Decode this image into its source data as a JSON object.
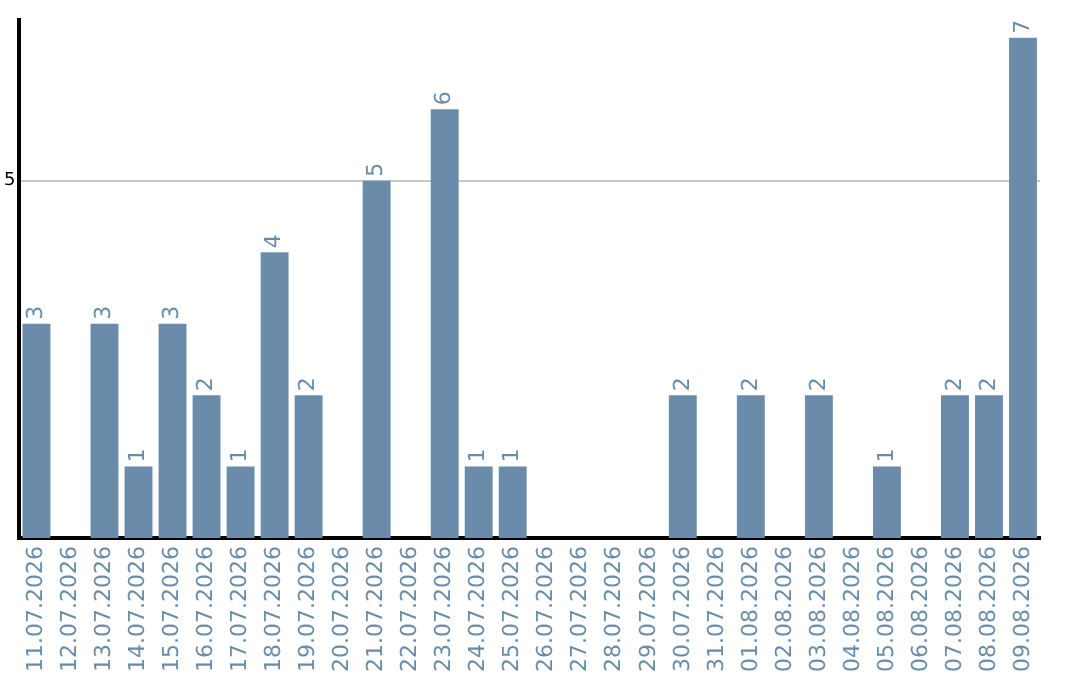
{
  "chart_data": {
    "type": "bar",
    "categories": [
      "11.07.2026",
      "12.07.2026",
      "13.07.2026",
      "14.07.2026",
      "15.07.2026",
      "16.07.2026",
      "17.07.2026",
      "18.07.2026",
      "19.07.2026",
      "20.07.2026",
      "21.07.2026",
      "22.07.2026",
      "23.07.2026",
      "24.07.2026",
      "25.07.2026",
      "26.07.2026",
      "27.07.2026",
      "28.07.2026",
      "29.07.2026",
      "30.07.2026",
      "31.07.2026",
      "01.08.2026",
      "02.08.2026",
      "03.08.2026",
      "04.08.2026",
      "05.08.2026",
      "06.08.2026",
      "07.08.2026",
      "08.08.2026",
      "09.08.2026"
    ],
    "values": [
      3,
      0,
      3,
      1,
      3,
      2,
      1,
      4,
      2,
      0,
      5,
      0,
      6,
      1,
      1,
      0,
      0,
      0,
      0,
      2,
      0,
      2,
      0,
      2,
      0,
      1,
      0,
      2,
      2,
      7
    ],
    "value_labels": [
      "3",
      null,
      "3",
      "1",
      "3",
      "2",
      "1",
      "4",
      "2",
      null,
      "5",
      null,
      "6",
      "1",
      "1",
      null,
      null,
      null,
      null,
      "2",
      null,
      "2",
      null,
      "2",
      null,
      "1",
      null,
      "2",
      "2",
      "7"
    ],
    "color": "#6a8caa",
    "ylim": [
      0,
      7.25
    ],
    "yticks": [
      5
    ],
    "grid": "y",
    "legend": false
  }
}
